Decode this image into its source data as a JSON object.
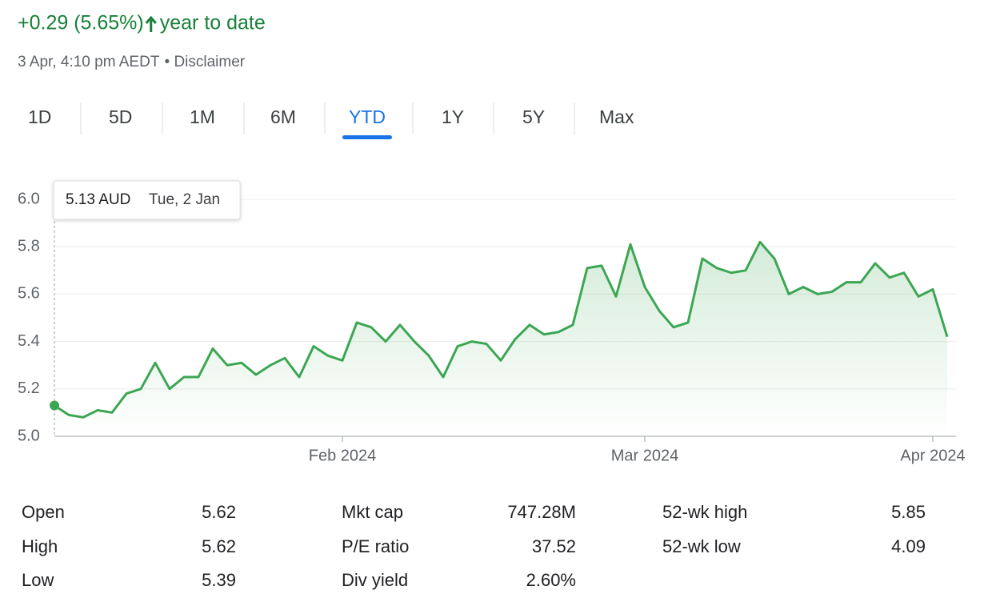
{
  "header": {
    "change": "+0.29 (5.65%)",
    "period": "year to date",
    "timestamp": "3 Apr, 4:10 pm AEDT",
    "separator": "•",
    "disclaimer": "Disclaimer"
  },
  "tabs": [
    "1D",
    "5D",
    "1M",
    "6M",
    "YTD",
    "1Y",
    "5Y",
    "Max"
  ],
  "selected_tab": 4,
  "chart_data": {
    "type": "line",
    "color": "#3ca653",
    "values": [
      5.13,
      5.09,
      5.08,
      5.11,
      5.1,
      5.18,
      5.2,
      5.31,
      5.2,
      5.25,
      5.25,
      5.37,
      5.3,
      5.31,
      5.26,
      5.3,
      5.33,
      5.25,
      5.38,
      5.34,
      5.32,
      5.48,
      5.46,
      5.4,
      5.47,
      5.4,
      5.34,
      5.25,
      5.38,
      5.4,
      5.39,
      5.32,
      5.41,
      5.47,
      5.43,
      5.44,
      5.47,
      5.71,
      5.72,
      5.59,
      5.81,
      5.63,
      5.53,
      5.46,
      5.48,
      5.75,
      5.71,
      5.69,
      5.7,
      5.82,
      5.75,
      5.6,
      5.63,
      5.6,
      5.61,
      5.65,
      5.65,
      5.73,
      5.67,
      5.69,
      5.59,
      5.62,
      5.42
    ],
    "xlim": [
      0,
      62
    ],
    "xticks": [
      {
        "value": 20,
        "label": "Feb 2024"
      },
      {
        "value": 41,
        "label": "Mar 2024"
      },
      {
        "value": 61,
        "label": "Apr 2024"
      }
    ],
    "ylim": [
      5.0,
      6.0
    ],
    "yticks": [
      {
        "value": 5,
        "label": "5.0"
      },
      5.2,
      5.4,
      5.6,
      5.8,
      {
        "value": 6,
        "label": "6.0"
      }
    ],
    "grid": true,
    "tooltip": {
      "price": "5.13 AUD",
      "date": "Tue, 2 Jan"
    }
  },
  "stats": [
    [
      {
        "label": "Open",
        "value": "5.62"
      },
      {
        "label": "High",
        "value": "5.62"
      },
      {
        "label": "Low",
        "value": "5.39"
      }
    ],
    [
      {
        "label": "Mkt cap",
        "value": "747.28M"
      },
      {
        "label": "P/E ratio",
        "value": "37.52"
      },
      {
        "label": "Div yield",
        "value": "2.60%"
      }
    ],
    [
      {
        "label": "52-wk high",
        "value": "5.85"
      },
      {
        "label": "52-wk low",
        "value": "4.09"
      }
    ]
  ]
}
